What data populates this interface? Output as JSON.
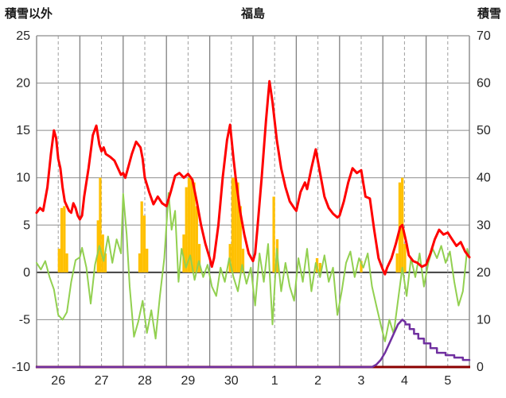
{
  "chart_data": {
    "type": "line",
    "title": "福島",
    "left_axis": {
      "title": "積雪以外",
      "min": -10,
      "max": 25,
      "ticks": [
        25,
        20,
        15,
        10,
        5,
        0,
        -5,
        -10
      ]
    },
    "right_axis": {
      "title": "積雪",
      "min": 0,
      "max": 70,
      "ticks": [
        70,
        60,
        50,
        40,
        30,
        20,
        10,
        0
      ]
    },
    "x_axis": {
      "labels": [
        "26",
        "27",
        "28",
        "29",
        "30",
        "1",
        "2",
        "3",
        "4",
        "5"
      ],
      "days": 10
    },
    "grid": {
      "h_color": "#8c8c8c",
      "v_solid_color": "#808080",
      "v_dash_color": "#9e9e9e",
      "zero_color": "#404040",
      "bottom_color": "#8b0000"
    },
    "bars": {
      "name": "precipitation-bars",
      "color": "#ffc000",
      "axis": "left",
      "width_days": 0.06,
      "points": [
        [
          0.52,
          2.5
        ],
        [
          0.58,
          6.8
        ],
        [
          0.64,
          7.0
        ],
        [
          0.7,
          2.0
        ],
        [
          1.42,
          5.5
        ],
        [
          1.47,
          10.0
        ],
        [
          1.53,
          4.0
        ],
        [
          1.59,
          2.0
        ],
        [
          2.38,
          2.0
        ],
        [
          2.43,
          7.5
        ],
        [
          2.49,
          6.0
        ],
        [
          2.55,
          2.5
        ],
        [
          3.4,
          4.0
        ],
        [
          3.46,
          9.0
        ],
        [
          3.52,
          10.0
        ],
        [
          3.58,
          10.0
        ],
        [
          3.64,
          9.5
        ],
        [
          3.7,
          7.0
        ],
        [
          3.76,
          3.0
        ],
        [
          4.47,
          3.0
        ],
        [
          4.53,
          10.0
        ],
        [
          4.59,
          10.0
        ],
        [
          4.65,
          9.5
        ],
        [
          4.71,
          7.0
        ],
        [
          4.77,
          2.5
        ],
        [
          5.48,
          8.0
        ],
        [
          5.56,
          3.5
        ],
        [
          6.48,
          1.5
        ],
        [
          6.55,
          1.0
        ],
        [
          7.5,
          1.2
        ],
        [
          8.33,
          2.0
        ],
        [
          8.39,
          9.5
        ],
        [
          8.45,
          10.0
        ],
        [
          8.51,
          3.0
        ]
      ]
    },
    "series": [
      {
        "name": "green-oscillation-line",
        "color": "#92d050",
        "axis": "left",
        "width": 2,
        "points": [
          [
            0.0,
            1.0
          ],
          [
            0.1,
            0.3
          ],
          [
            0.2,
            1.2
          ],
          [
            0.3,
            -0.5
          ],
          [
            0.4,
            -1.8
          ],
          [
            0.5,
            -4.5
          ],
          [
            0.6,
            -5.0
          ],
          [
            0.7,
            -4.2
          ],
          [
            0.8,
            -1.0
          ],
          [
            0.9,
            1.3
          ],
          [
            1.0,
            1.6
          ],
          [
            1.05,
            2.6
          ],
          [
            1.15,
            0.5
          ],
          [
            1.25,
            -3.3
          ],
          [
            1.35,
            0.8
          ],
          [
            1.45,
            2.8
          ],
          [
            1.55,
            1.2
          ],
          [
            1.65,
            3.8
          ],
          [
            1.75,
            1.0
          ],
          [
            1.85,
            3.5
          ],
          [
            1.95,
            2.0
          ],
          [
            2.0,
            8.3
          ],
          [
            2.08,
            4.0
          ],
          [
            2.15,
            -1.5
          ],
          [
            2.25,
            -6.8
          ],
          [
            2.35,
            -5.2
          ],
          [
            2.45,
            -3.0
          ],
          [
            2.55,
            -6.4
          ],
          [
            2.65,
            -4.0
          ],
          [
            2.75,
            -7.0
          ],
          [
            2.85,
            -2.5
          ],
          [
            2.95,
            1.5
          ],
          [
            3.05,
            8.4
          ],
          [
            3.12,
            4.5
          ],
          [
            3.2,
            6.5
          ],
          [
            3.28,
            -1.0
          ],
          [
            3.35,
            2.5
          ],
          [
            3.45,
            0.5
          ],
          [
            3.55,
            1.8
          ],
          [
            3.65,
            -0.8
          ],
          [
            3.75,
            1.2
          ],
          [
            3.85,
            -0.5
          ],
          [
            3.95,
            0.8
          ],
          [
            4.05,
            -1.5
          ],
          [
            4.15,
            -2.5
          ],
          [
            4.25,
            0.5
          ],
          [
            4.35,
            -1.0
          ],
          [
            4.45,
            1.5
          ],
          [
            4.55,
            -0.5
          ],
          [
            4.65,
            -2.0
          ],
          [
            4.75,
            0.8
          ],
          [
            4.85,
            -1.2
          ],
          [
            4.95,
            0.5
          ],
          [
            5.05,
            -3.5
          ],
          [
            5.15,
            2.0
          ],
          [
            5.25,
            -1.0
          ],
          [
            5.35,
            3.0
          ],
          [
            5.45,
            -5.5
          ],
          [
            5.55,
            2.5
          ],
          [
            5.65,
            -2.0
          ],
          [
            5.75,
            1.0
          ],
          [
            5.85,
            -1.5
          ],
          [
            5.95,
            -3.0
          ],
          [
            6.05,
            1.5
          ],
          [
            6.15,
            -1.0
          ],
          [
            6.25,
            2.5
          ],
          [
            6.35,
            -2.0
          ],
          [
            6.45,
            1.0
          ],
          [
            6.55,
            -0.5
          ],
          [
            6.65,
            1.8
          ],
          [
            6.75,
            -1.0
          ],
          [
            6.85,
            0.5
          ],
          [
            6.95,
            -4.5
          ],
          [
            7.05,
            -2.0
          ],
          [
            7.15,
            1.0
          ],
          [
            7.25,
            2.2
          ],
          [
            7.35,
            -0.5
          ],
          [
            7.45,
            1.5
          ],
          [
            7.55,
            0.5
          ],
          [
            7.65,
            2.0
          ],
          [
            7.75,
            -1.5
          ],
          [
            7.85,
            -3.5
          ],
          [
            7.95,
            -5.5
          ],
          [
            8.05,
            -7.3
          ],
          [
            8.15,
            -5.0
          ],
          [
            8.25,
            -6.5
          ],
          [
            8.35,
            -3.0
          ],
          [
            8.45,
            0.5
          ],
          [
            8.55,
            -2.5
          ],
          [
            8.65,
            1.5
          ],
          [
            8.75,
            -0.5
          ],
          [
            8.85,
            2.0
          ],
          [
            8.95,
            -1.5
          ],
          [
            9.05,
            1.0
          ],
          [
            9.15,
            2.5
          ],
          [
            9.25,
            1.5
          ],
          [
            9.35,
            2.8
          ],
          [
            9.45,
            1.0
          ],
          [
            9.55,
            2.2
          ],
          [
            9.65,
            -1.0
          ],
          [
            9.75,
            -3.5
          ],
          [
            9.85,
            -2.0
          ],
          [
            9.95,
            2.5
          ],
          [
            10.0,
            1.5
          ]
        ]
      },
      {
        "name": "temperature-line",
        "color": "#ff0000",
        "axis": "left",
        "width": 3,
        "points": [
          [
            0.0,
            6.3
          ],
          [
            0.08,
            6.8
          ],
          [
            0.15,
            6.5
          ],
          [
            0.25,
            9.0
          ],
          [
            0.33,
            12.5
          ],
          [
            0.4,
            15.0
          ],
          [
            0.45,
            14.2
          ],
          [
            0.5,
            12.0
          ],
          [
            0.55,
            11.0
          ],
          [
            0.6,
            9.0
          ],
          [
            0.65,
            7.5
          ],
          [
            0.7,
            7.0
          ],
          [
            0.75,
            6.5
          ],
          [
            0.8,
            6.3
          ],
          [
            0.85,
            7.3
          ],
          [
            0.9,
            6.8
          ],
          [
            0.95,
            6.0
          ],
          [
            1.0,
            5.6
          ],
          [
            1.05,
            6.0
          ],
          [
            1.1,
            8.0
          ],
          [
            1.2,
            11.0
          ],
          [
            1.3,
            14.5
          ],
          [
            1.38,
            15.5
          ],
          [
            1.45,
            13.5
          ],
          [
            1.5,
            12.8
          ],
          [
            1.55,
            13.2
          ],
          [
            1.6,
            12.5
          ],
          [
            1.7,
            12.2
          ],
          [
            1.8,
            11.8
          ],
          [
            1.9,
            10.8
          ],
          [
            1.95,
            10.3
          ],
          [
            2.0,
            10.5
          ],
          [
            2.05,
            10.0
          ],
          [
            2.1,
            10.8
          ],
          [
            2.2,
            12.5
          ],
          [
            2.3,
            13.8
          ],
          [
            2.4,
            13.2
          ],
          [
            2.45,
            12.0
          ],
          [
            2.5,
            10.0
          ],
          [
            2.6,
            8.5
          ],
          [
            2.7,
            7.2
          ],
          [
            2.8,
            8.0
          ],
          [
            2.9,
            7.3
          ],
          [
            3.0,
            7.0
          ],
          [
            3.1,
            8.5
          ],
          [
            3.2,
            10.2
          ],
          [
            3.3,
            10.5
          ],
          [
            3.4,
            10.0
          ],
          [
            3.5,
            10.4
          ],
          [
            3.6,
            9.8
          ],
          [
            3.7,
            7.5
          ],
          [
            3.8,
            5.0
          ],
          [
            3.9,
            3.0
          ],
          [
            4.0,
            1.5
          ],
          [
            4.05,
            0.6
          ],
          [
            4.1,
            1.5
          ],
          [
            4.2,
            5.0
          ],
          [
            4.3,
            10.0
          ],
          [
            4.4,
            14.0
          ],
          [
            4.47,
            15.6
          ],
          [
            4.55,
            12.0
          ],
          [
            4.6,
            10.0
          ],
          [
            4.7,
            6.5
          ],
          [
            4.8,
            4.0
          ],
          [
            4.9,
            2.0
          ],
          [
            5.0,
            1.2
          ],
          [
            5.05,
            2.0
          ],
          [
            5.1,
            4.5
          ],
          [
            5.2,
            10.0
          ],
          [
            5.3,
            16.0
          ],
          [
            5.38,
            20.2
          ],
          [
            5.45,
            18.0
          ],
          [
            5.55,
            14.0
          ],
          [
            5.65,
            11.0
          ],
          [
            5.75,
            9.0
          ],
          [
            5.85,
            7.5
          ],
          [
            5.95,
            6.8
          ],
          [
            6.0,
            6.5
          ],
          [
            6.1,
            8.5
          ],
          [
            6.2,
            9.5
          ],
          [
            6.25,
            8.8
          ],
          [
            6.35,
            11.0
          ],
          [
            6.45,
            13.0
          ],
          [
            6.55,
            10.5
          ],
          [
            6.65,
            8.0
          ],
          [
            6.75,
            6.8
          ],
          [
            6.85,
            6.2
          ],
          [
            6.95,
            5.8
          ],
          [
            7.0,
            6.0
          ],
          [
            7.1,
            7.5
          ],
          [
            7.2,
            9.5
          ],
          [
            7.3,
            11.0
          ],
          [
            7.4,
            10.5
          ],
          [
            7.5,
            10.8
          ],
          [
            7.6,
            8.0
          ],
          [
            7.7,
            7.8
          ],
          [
            7.8,
            4.5
          ],
          [
            7.9,
            1.5
          ],
          [
            8.0,
            0.3
          ],
          [
            8.05,
            -0.2
          ],
          [
            8.1,
            0.5
          ],
          [
            8.2,
            1.5
          ],
          [
            8.3,
            3.0
          ],
          [
            8.4,
            4.8
          ],
          [
            8.45,
            5.0
          ],
          [
            8.55,
            3.0
          ],
          [
            8.6,
            1.8
          ],
          [
            8.7,
            1.2
          ],
          [
            8.8,
            1.0
          ],
          [
            8.9,
            0.6
          ],
          [
            9.0,
            0.8
          ],
          [
            9.1,
            2.0
          ],
          [
            9.2,
            3.5
          ],
          [
            9.3,
            4.5
          ],
          [
            9.4,
            4.0
          ],
          [
            9.5,
            4.2
          ],
          [
            9.6,
            3.5
          ],
          [
            9.7,
            2.8
          ],
          [
            9.8,
            3.2
          ],
          [
            9.9,
            2.2
          ],
          [
            10.0,
            1.6
          ]
        ]
      },
      {
        "name": "snow-depth-line",
        "color": "#7030a0",
        "axis": "right",
        "width": 2.5,
        "points": [
          [
            0,
            0
          ],
          [
            7.75,
            0
          ],
          [
            7.85,
            0.5
          ],
          [
            7.95,
            1.5
          ],
          [
            8.05,
            3.0
          ],
          [
            8.15,
            5.0
          ],
          [
            8.25,
            7.0
          ],
          [
            8.35,
            9.0
          ],
          [
            8.45,
            10.0
          ],
          [
            8.52,
            9.5
          ],
          [
            8.52,
            9.0
          ],
          [
            8.62,
            9.0
          ],
          [
            8.62,
            8.0
          ],
          [
            8.72,
            8.0
          ],
          [
            8.72,
            7.0
          ],
          [
            8.82,
            7.0
          ],
          [
            8.82,
            6.0
          ],
          [
            8.95,
            6.0
          ],
          [
            8.95,
            5.0
          ],
          [
            9.1,
            5.0
          ],
          [
            9.1,
            4.0
          ],
          [
            9.25,
            4.0
          ],
          [
            9.25,
            3.0
          ],
          [
            9.45,
            3.0
          ],
          [
            9.45,
            2.5
          ],
          [
            9.65,
            2.5
          ],
          [
            9.65,
            2.0
          ],
          [
            9.85,
            2.0
          ],
          [
            9.85,
            1.5
          ],
          [
            10.0,
            1.5
          ]
        ]
      }
    ]
  }
}
